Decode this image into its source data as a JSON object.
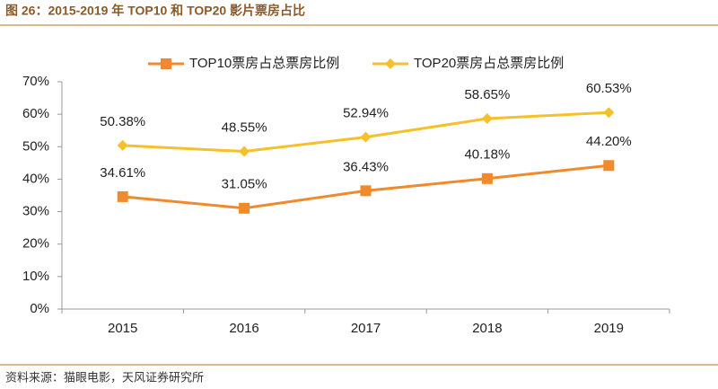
{
  "chart_data": {
    "type": "line",
    "title": "图 26：2015-2019 年 TOP10 和 TOP20 影片票房占比",
    "source": "资料来源：猫眼电影，天风证券研究所",
    "categories": [
      "2015",
      "2016",
      "2017",
      "2018",
      "2019"
    ],
    "series": [
      {
        "name": "TOP10票房占总票房比例",
        "color": "#f08a2c",
        "marker": "square",
        "values": [
          34.61,
          31.05,
          36.43,
          40.18,
          44.2
        ],
        "value_labels": [
          "34.61%",
          "31.05%",
          "36.43%",
          "40.18%",
          "44.20%"
        ]
      },
      {
        "name": "TOP20票房占总票房比例",
        "color": "#f5c02c",
        "marker": "diamond",
        "values": [
          50.38,
          48.55,
          52.94,
          58.65,
          60.53
        ],
        "value_labels": [
          "50.38%",
          "48.55%",
          "52.94%",
          "58.65%",
          "60.53%"
        ]
      }
    ],
    "ylim": [
      0,
      70
    ],
    "yticks": [
      {
        "value": 0,
        "label": "0%"
      },
      {
        "value": 10,
        "label": "10%"
      },
      {
        "value": 20,
        "label": "20%"
      },
      {
        "value": 30,
        "label": "30%"
      },
      {
        "value": 40,
        "label": "40%"
      },
      {
        "value": 50,
        "label": "50%"
      },
      {
        "value": 60,
        "label": "60%"
      },
      {
        "value": 70,
        "label": "70%"
      }
    ],
    "grid": false,
    "legend": "top"
  }
}
